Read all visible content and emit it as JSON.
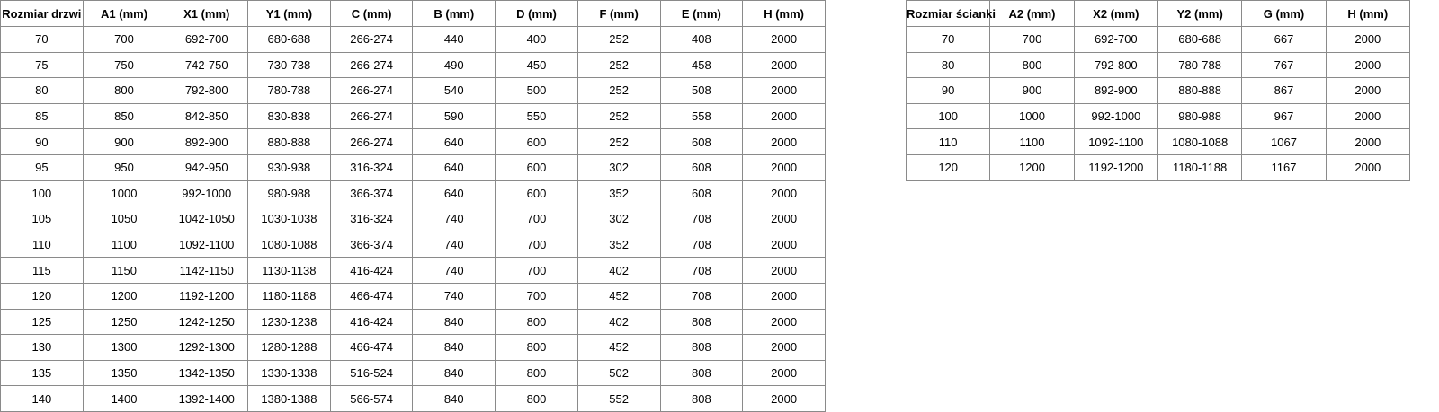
{
  "door_table": {
    "headers": [
      "Rozmiar drzwi",
      "A1 (mm)",
      "X1 (mm)",
      "Y1 (mm)",
      "C (mm)",
      "B (mm)",
      "D (mm)",
      "F (mm)",
      "E (mm)",
      "H (mm)"
    ],
    "rows": [
      [
        "70",
        "700",
        "692-700",
        "680-688",
        "266-274",
        "440",
        "400",
        "252",
        "408",
        "2000"
      ],
      [
        "75",
        "750",
        "742-750",
        "730-738",
        "266-274",
        "490",
        "450",
        "252",
        "458",
        "2000"
      ],
      [
        "80",
        "800",
        "792-800",
        "780-788",
        "266-274",
        "540",
        "500",
        "252",
        "508",
        "2000"
      ],
      [
        "85",
        "850",
        "842-850",
        "830-838",
        "266-274",
        "590",
        "550",
        "252",
        "558",
        "2000"
      ],
      [
        "90",
        "900",
        "892-900",
        "880-888",
        "266-274",
        "640",
        "600",
        "252",
        "608",
        "2000"
      ],
      [
        "95",
        "950",
        "942-950",
        "930-938",
        "316-324",
        "640",
        "600",
        "302",
        "608",
        "2000"
      ],
      [
        "100",
        "1000",
        "992-1000",
        "980-988",
        "366-374",
        "640",
        "600",
        "352",
        "608",
        "2000"
      ],
      [
        "105",
        "1050",
        "1042-1050",
        "1030-1038",
        "316-324",
        "740",
        "700",
        "302",
        "708",
        "2000"
      ],
      [
        "110",
        "1100",
        "1092-1100",
        "1080-1088",
        "366-374",
        "740",
        "700",
        "352",
        "708",
        "2000"
      ],
      [
        "115",
        "1150",
        "1142-1150",
        "1130-1138",
        "416-424",
        "740",
        "700",
        "402",
        "708",
        "2000"
      ],
      [
        "120",
        "1200",
        "1192-1200",
        "1180-1188",
        "466-474",
        "740",
        "700",
        "452",
        "708",
        "2000"
      ],
      [
        "125",
        "1250",
        "1242-1250",
        "1230-1238",
        "416-424",
        "840",
        "800",
        "402",
        "808",
        "2000"
      ],
      [
        "130",
        "1300",
        "1292-1300",
        "1280-1288",
        "466-474",
        "840",
        "800",
        "452",
        "808",
        "2000"
      ],
      [
        "135",
        "1350",
        "1342-1350",
        "1330-1338",
        "516-524",
        "840",
        "800",
        "502",
        "808",
        "2000"
      ],
      [
        "140",
        "1400",
        "1392-1400",
        "1380-1388",
        "566-574",
        "840",
        "800",
        "552",
        "808",
        "2000"
      ]
    ]
  },
  "wall_table": {
    "headers": [
      "Rozmiar ścianki",
      "A2 (mm)",
      "X2 (mm)",
      "Y2 (mm)",
      "G (mm)",
      "H (mm)"
    ],
    "rows": [
      [
        "70",
        "700",
        "692-700",
        "680-688",
        "667",
        "2000"
      ],
      [
        "80",
        "800",
        "792-800",
        "780-788",
        "767",
        "2000"
      ],
      [
        "90",
        "900",
        "892-900",
        "880-888",
        "867",
        "2000"
      ],
      [
        "100",
        "1000",
        "992-1000",
        "980-988",
        "967",
        "2000"
      ],
      [
        "110",
        "1100",
        "1092-1100",
        "1080-1088",
        "1067",
        "2000"
      ],
      [
        "120",
        "1200",
        "1192-1200",
        "1180-1188",
        "1167",
        "2000"
      ]
    ]
  }
}
